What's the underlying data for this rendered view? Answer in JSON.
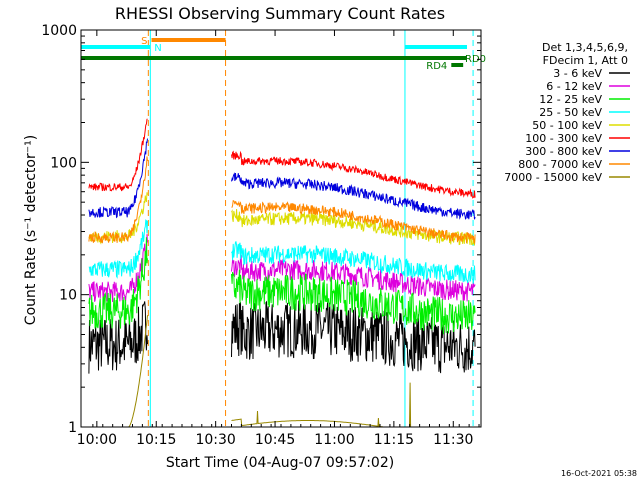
{
  "chart_data": {
    "type": "line",
    "title": "RHESSI Observing Summary Count Rates",
    "xlabel": "Start Time (04-Aug-07 09:57:02)",
    "ylabel": "Count Rate (s⁻¹ detector⁻¹)",
    "y_scale": "log",
    "ylim": [
      1,
      1000
    ],
    "xlim_minutes": [
      -4,
      97
    ],
    "x_ticks": [
      {
        "label": "10:00",
        "t": 0
      },
      {
        "label": "10:15",
        "t": 15
      },
      {
        "label": "10:30",
        "t": 30
      },
      {
        "label": "10:45",
        "t": 45
      },
      {
        "label": "11:00",
        "t": 60
      },
      {
        "label": "11:15",
        "t": 75
      },
      {
        "label": "11:30",
        "t": 90
      }
    ],
    "y_ticks": [
      {
        "label": "1",
        "v": 1
      },
      {
        "label": "10",
        "v": 10
      },
      {
        "label": "100",
        "v": 100
      },
      {
        "label": "1000",
        "v": 1000
      }
    ],
    "legend_header": [
      "Det 1,3,4,5,6,9,",
      "FDecim 1, Att 0"
    ],
    "legend_position": "right",
    "series": [
      {
        "name": "3 - 6 keV",
        "color": "#000000",
        "pre": 4.2,
        "pre_spike": 6.5,
        "post": 5.0,
        "end": 4.6,
        "jitter": 0.22
      },
      {
        "name": "6 - 12 keV",
        "color": "#dd00dd",
        "pre": 10.5,
        "pre_spike": 25,
        "post": 14.5,
        "end": 12.0,
        "jitter": 0.08
      },
      {
        "name": "12 - 25 keV",
        "color": "#00ee00",
        "pre": 7.5,
        "pre_spike": 22,
        "post": 10.0,
        "end": 7.5,
        "jitter": 0.14
      },
      {
        "name": "25 - 50 keV",
        "color": "#00ffff",
        "pre": 15.5,
        "pre_spike": 35,
        "post": 19.0,
        "end": 16.0,
        "jitter": 0.07
      },
      {
        "name": "50 - 100 keV",
        "color": "#dddd00",
        "pre": 27.5,
        "pre_spike": 60,
        "post": 35.0,
        "end": 30.0,
        "jitter": 0.05
      },
      {
        "name": "100 - 300 keV",
        "color": "#ff0000",
        "pre": 65.0,
        "pre_spike": 220,
        "post": 100.0,
        "end": 65.0,
        "jitter": 0.03
      },
      {
        "name": "300 - 800 keV",
        "color": "#0000dd",
        "pre": 42.0,
        "pre_spike": 150,
        "post": 68.0,
        "end": 45.0,
        "jitter": 0.04
      },
      {
        "name": "800 - 7000 keV",
        "color": "#ff8800",
        "pre": 27.0,
        "pre_spike": 110,
        "post": 44.0,
        "end": 30.0,
        "jitter": 0.04
      },
      {
        "name": "7000 - 15000 keV",
        "color": "#998800",
        "pre": 1.0,
        "pre_spike": 7.0,
        "post": 1.0,
        "end": 1.0,
        "jitter": 0.0
      }
    ],
    "flag_bars": [
      {
        "label": "S",
        "color": "#ff8800",
        "t0": 13.8,
        "t1": 32.5
      },
      {
        "label": "N",
        "color": "#00ffff",
        "t0": -4,
        "t1": 13.5
      },
      {
        "label": "",
        "color": "#00ffff",
        "t0": 77.8,
        "t1": 97
      },
      {
        "label": "RD0",
        "color": "#007700",
        "t0": -4,
        "t1": 97
      },
      {
        "label": "RD4",
        "color": "#007700",
        "t0": 89.5,
        "t1": 92.5
      }
    ],
    "vertical_markers": [
      {
        "color": "#00ffff",
        "t": -4.0,
        "style": "solid"
      },
      {
        "color": "#00ffff",
        "t": 13.5,
        "style": "solid"
      },
      {
        "color": "#ff8800",
        "t": 13.0,
        "style": "dashed"
      },
      {
        "color": "#ff8800",
        "t": 32.5,
        "style": "dashed"
      },
      {
        "color": "#00ffff",
        "t": 77.8,
        "style": "solid"
      },
      {
        "color": "#00ffff",
        "t": 95.0,
        "style": "dashed"
      }
    ],
    "data_segments": [
      {
        "t0": -2,
        "t1": 12.8
      },
      {
        "t0": 34.0,
        "t1": 95.5
      }
    ],
    "timestamp": "16-Oct-2021 05:38"
  }
}
